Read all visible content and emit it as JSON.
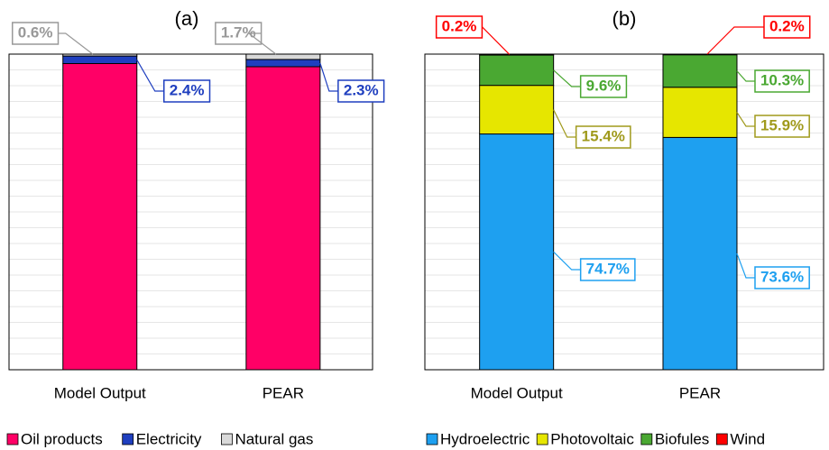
{
  "chart_data": [
    {
      "type": "bar",
      "stacked": true,
      "title": "(a)",
      "categories": [
        "Model Output",
        "PEAR"
      ],
      "ylim": [
        0,
        100
      ],
      "yticks": [
        0,
        5,
        10,
        15,
        20,
        25,
        30,
        35,
        40,
        45,
        50,
        55,
        60,
        65,
        70,
        75,
        80,
        85,
        90,
        95,
        100
      ],
      "grid": true,
      "series": [
        {
          "name": "Oil products",
          "color": "#ff0066",
          "values": [
            97.0,
            96.0
          ]
        },
        {
          "name": "Electricity",
          "color": "#1f3fbf",
          "values": [
            2.4,
            2.3
          ],
          "value_labels": [
            "2.4%",
            "2.3%"
          ]
        },
        {
          "name": "Natural gas",
          "color": "#d9d9d9",
          "values": [
            0.6,
            1.7
          ],
          "value_labels": [
            "0.6%",
            "1.7%"
          ]
        }
      ]
    },
    {
      "type": "bar",
      "stacked": true,
      "title": "(b)",
      "categories": [
        "Model Output",
        "PEAR"
      ],
      "ylim": [
        0,
        100
      ],
      "yticks": [
        0,
        5,
        10,
        15,
        20,
        25,
        30,
        35,
        40,
        45,
        50,
        55,
        60,
        65,
        70,
        75,
        80,
        85,
        90,
        95,
        100
      ],
      "grid": true,
      "series": [
        {
          "name": "Hydroelectric",
          "color": "#1ea0f0",
          "values": [
            74.7,
            73.6
          ],
          "value_labels": [
            "74.7%",
            "73.6%"
          ]
        },
        {
          "name": "Photovoltaic",
          "color": "#e6e600",
          "values": [
            15.4,
            15.9
          ],
          "value_labels": [
            "15.4%",
            "15.9%"
          ]
        },
        {
          "name": "Biofules",
          "color": "#4aa832",
          "values": [
            9.6,
            10.3
          ],
          "value_labels": [
            "9.6%",
            "10.3%"
          ]
        },
        {
          "name": "Wind",
          "color": "#ff0000",
          "values": [
            0.2,
            0.2
          ],
          "value_labels": [
            "0.2%",
            "0.2%"
          ]
        }
      ]
    }
  ]
}
